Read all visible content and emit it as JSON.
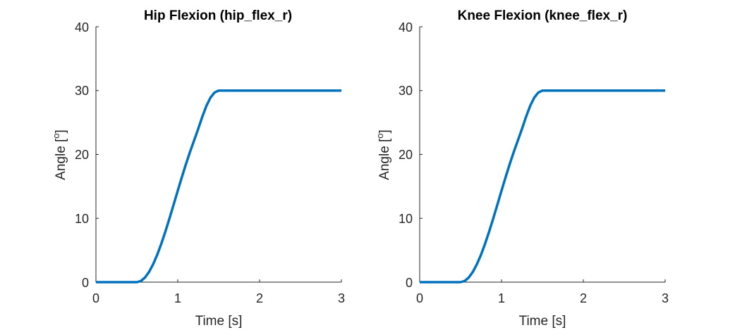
{
  "colors": {
    "line": "#0072BD",
    "axis": "#262626",
    "background": "#ffffff"
  },
  "chart_data": [
    {
      "type": "line",
      "title": "Hip Flexion (hip_flex_r)",
      "xlabel": "Time [s]",
      "ylabel_text": "Angle [",
      "ylabel_sup": "o",
      "ylabel_close": "]",
      "xlim": [
        0,
        3
      ],
      "ylim": [
        0,
        40
      ],
      "xticks": [
        0,
        1,
        2,
        3
      ],
      "yticks": [
        0,
        10,
        20,
        30,
        40
      ],
      "xtick_labels": [
        "0",
        "1",
        "2",
        "3"
      ],
      "ytick_labels": [
        "0",
        "10",
        "20",
        "30",
        "40"
      ],
      "grid": false,
      "series": [
        {
          "x": [
            0,
            0.5,
            0.55,
            0.6,
            0.65,
            0.7,
            0.75,
            0.8,
            0.85,
            0.9,
            0.95,
            1.0,
            1.05,
            1.1,
            1.15,
            1.2,
            1.25,
            1.3,
            1.35,
            1.4,
            1.45,
            1.5,
            2.0,
            2.5,
            3.0
          ],
          "y": [
            0,
            0,
            0.18,
            0.73,
            1.62,
            2.83,
            4.32,
            6.05,
            7.97,
            10.03,
            12.16,
            14.32,
            16.44,
            18.48,
            20.41,
            22.2,
            24.0,
            25.9,
            27.6,
            28.9,
            29.7,
            30,
            30,
            30,
            30
          ]
        }
      ]
    },
    {
      "type": "line",
      "title": "Knee Flexion (knee_flex_r)",
      "xlabel": "Time [s]",
      "ylabel_text": "Angle [",
      "ylabel_sup": "o",
      "ylabel_close": "]",
      "xlim": [
        0,
        3
      ],
      "ylim": [
        0,
        40
      ],
      "xticks": [
        0,
        1,
        2,
        3
      ],
      "yticks": [
        0,
        10,
        20,
        30,
        40
      ],
      "xtick_labels": [
        "0",
        "1",
        "2",
        "3"
      ],
      "ytick_labels": [
        "0",
        "10",
        "20",
        "30",
        "40"
      ],
      "grid": false,
      "series": [
        {
          "x": [
            0,
            0.5,
            0.55,
            0.6,
            0.65,
            0.7,
            0.75,
            0.8,
            0.85,
            0.9,
            0.95,
            1.0,
            1.05,
            1.1,
            1.15,
            1.2,
            1.25,
            1.3,
            1.35,
            1.4,
            1.45,
            1.5,
            2.0,
            2.5,
            3.0
          ],
          "y": [
            0,
            0,
            0.18,
            0.73,
            1.62,
            2.83,
            4.32,
            6.05,
            7.97,
            10.03,
            12.16,
            14.32,
            16.44,
            18.48,
            20.41,
            22.2,
            24.0,
            25.9,
            27.6,
            28.9,
            29.7,
            30,
            30,
            30,
            30
          ]
        }
      ]
    }
  ]
}
